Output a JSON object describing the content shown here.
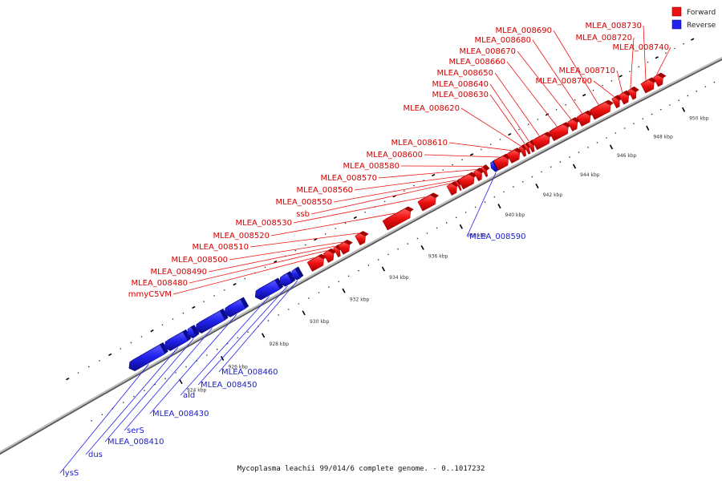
{
  "caption": "Mycoplasma leachii 99/014/6 complete genome. - 0..1017232",
  "legend": [
    {
      "label": "Forward",
      "color": "#ee1111"
    },
    {
      "label": "Reverse",
      "color": "#2222ee"
    }
  ],
  "colors": {
    "forward": "#ee1111",
    "forward_dark": "#a30000",
    "forward_light": "#ff5a5a",
    "reverse": "#2222ee",
    "reverse_dark": "#0a0a8c",
    "reverse_light": "#5a5aff",
    "backbone": "#888888"
  },
  "ticks": [
    {
      "label": "924 kbp",
      "kbp": 924
    },
    {
      "label": "926 kbp",
      "kbp": 926
    },
    {
      "label": "928 kbp",
      "kbp": 928
    },
    {
      "label": "930 kbp",
      "kbp": 930
    },
    {
      "label": "932 kbp",
      "kbp": 932
    },
    {
      "label": "934 kbp",
      "kbp": 934
    },
    {
      "label": "936 kbp",
      "kbp": 936
    },
    {
      "label": "938 kbp",
      "kbp": 938
    },
    {
      "label": "940 kbp",
      "kbp": 940
    },
    {
      "label": "942 kbp",
      "kbp": 942
    },
    {
      "label": "944 kbp",
      "kbp": 944
    },
    {
      "label": "946 kbp",
      "kbp": 946
    },
    {
      "label": "948 kbp",
      "kbp": 948
    },
    {
      "label": "950 kbp",
      "kbp": 950
    }
  ],
  "genes": [
    {
      "name": "lysS",
      "strand": "reverse",
      "start": 922.4,
      "end": 924.0
    },
    {
      "name": "dus",
      "strand": "reverse",
      "start": 924.1,
      "end": 925.1
    },
    {
      "name": "MLEA_008410",
      "strand": "reverse",
      "start": 925.2,
      "end": 925.5
    },
    {
      "name": "serS",
      "strand": "reverse",
      "start": 925.6,
      "end": 926.9
    },
    {
      "name": "MLEA_008430",
      "strand": "reverse",
      "start": 927.0,
      "end": 927.9
    },
    {
      "name": "ald",
      "strand": "reverse",
      "start": 928.5,
      "end": 929.6
    },
    {
      "name": "MLEA_008450",
      "strand": "reverse",
      "start": 929.7,
      "end": 930.2
    },
    {
      "name": "MLEA_008460",
      "strand": "reverse",
      "start": 930.3,
      "end": 930.6
    },
    {
      "name": "mmyC5VM",
      "strand": "forward",
      "start": 931.2,
      "end": 931.9
    },
    {
      "name": "MLEA_008480",
      "strand": "forward",
      "start": 932.0,
      "end": 932.4
    },
    {
      "name": "MLEA_008490",
      "strand": "forward",
      "start": 932.5,
      "end": 932.7
    },
    {
      "name": "MLEA_008500",
      "strand": "forward",
      "start": 932.75,
      "end": 933.2
    },
    {
      "name": "MLEA_008510",
      "strand": "forward",
      "start": 933.6,
      "end": 934.0
    },
    {
      "name": "MLEA_008520",
      "strand": "forward",
      "start": 935.0,
      "end": 936.3
    },
    {
      "name": "MLEA_008530",
      "strand": "forward",
      "start": 936.8,
      "end": 937.6
    },
    {
      "name": "ssb",
      "strand": "forward",
      "start": 938.3,
      "end": 938.7
    },
    {
      "name": "MLEA_008550",
      "strand": "forward",
      "start": 938.75,
      "end": 938.85
    },
    {
      "name": "MLEA_008560",
      "strand": "forward",
      "start": 938.9,
      "end": 939.6
    },
    {
      "name": "MLEA_008570",
      "strand": "forward",
      "start": 939.7,
      "end": 940.0
    },
    {
      "name": "MLEA_008580",
      "strand": "forward",
      "start": 940.1,
      "end": 940.25
    },
    {
      "name": "MLEA_008590",
      "strand": "reverse",
      "start": 940.5,
      "end": 940.7
    },
    {
      "name": "MLEA_008600",
      "strand": "forward",
      "start": 940.75,
      "end": 941.4
    },
    {
      "name": "MLEA_008610",
      "strand": "forward",
      "start": 941.45,
      "end": 942.0
    },
    {
      "name": "MLEA_008620",
      "strand": "forward",
      "start": 942.1,
      "end": 942.3
    },
    {
      "name": "MLEA_008630",
      "strand": "forward",
      "start": 942.35,
      "end": 942.5
    },
    {
      "name": "MLEA_008640",
      "strand": "forward",
      "start": 942.55,
      "end": 942.75
    },
    {
      "name": "MLEA_008650",
      "strand": "forward",
      "start": 942.8,
      "end": 943.6
    },
    {
      "name": "MLEA_008660",
      "strand": "forward",
      "start": 943.7,
      "end": 944.6
    },
    {
      "name": "MLEA_008670",
      "strand": "forward",
      "start": 944.7,
      "end": 945.1
    },
    {
      "name": "MLEA_008680",
      "strand": "forward",
      "start": 945.2,
      "end": 945.8
    },
    {
      "name": "MLEA_008690",
      "strand": "forward",
      "start": 945.9,
      "end": 946.9
    },
    {
      "name": "MLEA_008700",
      "strand": "forward",
      "start": 947.1,
      "end": 947.4
    },
    {
      "name": "MLEA_008710",
      "strand": "forward",
      "start": 947.5,
      "end": 947.9
    },
    {
      "name": "MLEA_008720",
      "strand": "forward",
      "start": 948.0,
      "end": 948.3
    },
    {
      "name": "MLEA_008730",
      "strand": "forward",
      "start": 948.7,
      "end": 949.3
    },
    {
      "name": "MLEA_008740",
      "strand": "forward",
      "start": 949.4,
      "end": 949.8
    }
  ]
}
